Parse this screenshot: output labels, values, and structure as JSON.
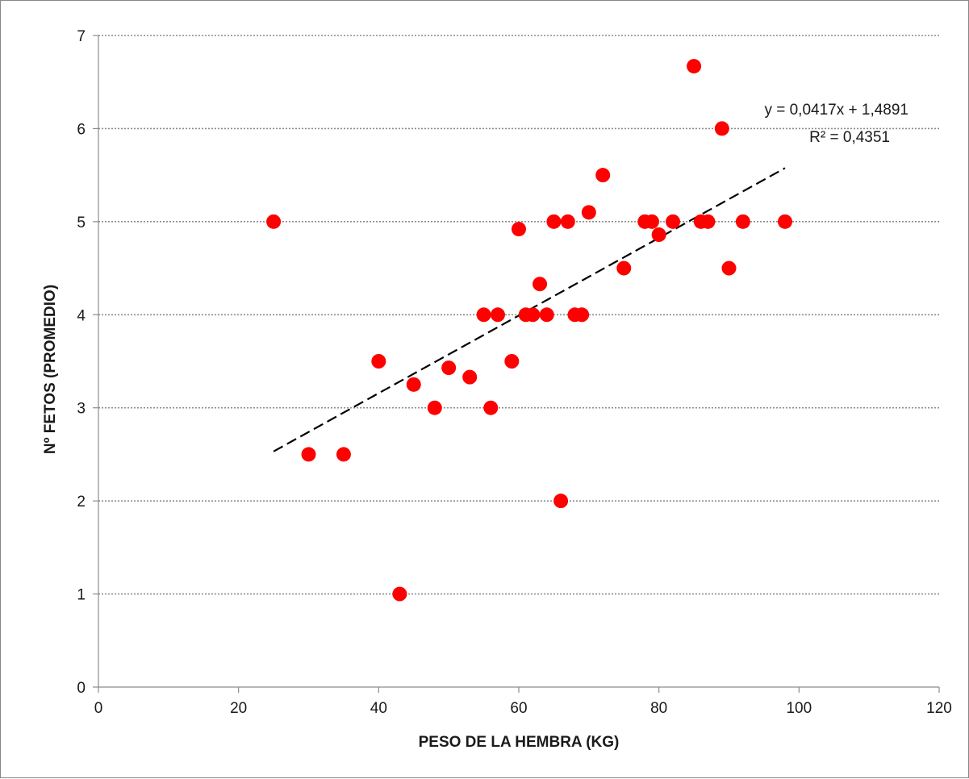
{
  "chart_data": {
    "type": "scatter",
    "title": "",
    "xlabel": "PESO DE LA HEMBRA (KG)",
    "ylabel": "Nº FETOS (PROMEDIO)",
    "xlim": [
      0,
      120
    ],
    "ylim": [
      0,
      7
    ],
    "x_ticks": [
      "0",
      "20",
      "40",
      "60",
      "80",
      "100",
      "120"
    ],
    "y_ticks": [
      "0",
      "1",
      "2",
      "3",
      "4",
      "5",
      "6",
      "7"
    ],
    "grid": "horizontal-dotted",
    "legend": "none",
    "marker_color": "#ff0000",
    "trendline_color": "#000000",
    "points": [
      {
        "x": 25,
        "y": 5
      },
      {
        "x": 30,
        "y": 2.5
      },
      {
        "x": 35,
        "y": 2.5
      },
      {
        "x": 40,
        "y": 3.5
      },
      {
        "x": 43,
        "y": 1
      },
      {
        "x": 45,
        "y": 3.25
      },
      {
        "x": 48,
        "y": 3
      },
      {
        "x": 50,
        "y": 3.43
      },
      {
        "x": 53,
        "y": 3.33
      },
      {
        "x": 55,
        "y": 4
      },
      {
        "x": 56,
        "y": 3
      },
      {
        "x": 57,
        "y": 4
      },
      {
        "x": 59,
        "y": 3.5
      },
      {
        "x": 60,
        "y": 4.92
      },
      {
        "x": 61,
        "y": 4
      },
      {
        "x": 62,
        "y": 4
      },
      {
        "x": 63,
        "y": 4.33
      },
      {
        "x": 64,
        "y": 4
      },
      {
        "x": 65,
        "y": 5
      },
      {
        "x": 66,
        "y": 2
      },
      {
        "x": 67,
        "y": 5
      },
      {
        "x": 68,
        "y": 4
      },
      {
        "x": 69,
        "y": 4
      },
      {
        "x": 70,
        "y": 5.1
      },
      {
        "x": 72,
        "y": 5.5
      },
      {
        "x": 75,
        "y": 4.5
      },
      {
        "x": 78,
        "y": 5
      },
      {
        "x": 79,
        "y": 5
      },
      {
        "x": 80,
        "y": 4.86
      },
      {
        "x": 82,
        "y": 5
      },
      {
        "x": 85,
        "y": 6.67
      },
      {
        "x": 86,
        "y": 5
      },
      {
        "x": 87,
        "y": 5
      },
      {
        "x": 89,
        "y": 6
      },
      {
        "x": 90,
        "y": 4.5
      },
      {
        "x": 92,
        "y": 5
      },
      {
        "x": 98,
        "y": 5
      }
    ],
    "trendline": {
      "slope": 0.0417,
      "intercept": 1.4891,
      "x_range": [
        25,
        98
      ],
      "equation": "y = 0,0417x + 1,4891",
      "r_squared": "R² = 0,4351"
    }
  }
}
